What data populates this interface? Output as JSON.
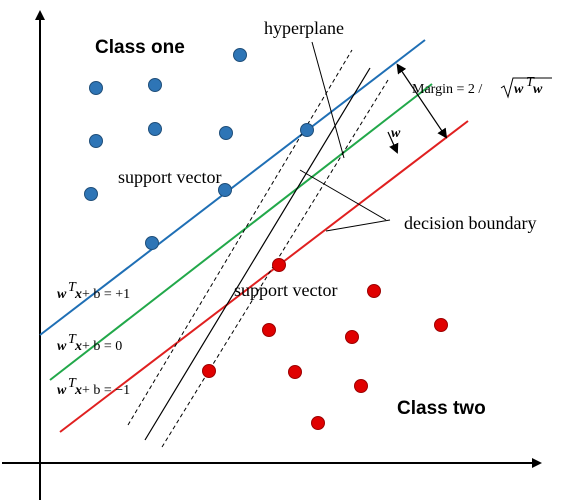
{
  "labels": {
    "class_one": "Class one",
    "class_two": "Class two",
    "hyperplane": "hyperplane",
    "support_vector_top": "support vector",
    "support_vector_bottom": "support vector",
    "decision_boundary": "decision boundary",
    "w": "w",
    "margin_prefix": "Margin = 2 / ",
    "margin_w": "w",
    "margin_T": "T",
    "margin_w2": "w"
  },
  "equations": {
    "plus": {
      "w": "w",
      "T": "T",
      "x": "x",
      "rest": " + b = +1"
    },
    "zero": {
      "w": "w",
      "T": "T",
      "x": "x",
      "rest": " + b = 0"
    },
    "minus": {
      "w": "w",
      "T": "T",
      "x": "x",
      "rest": " + b = −1"
    }
  },
  "colors": {
    "class_one_point": "#2e75b6",
    "class_one_edge": "#1f4e79",
    "class_two_point": "#e00000",
    "class_two_edge": "#9c0000",
    "line_plus": "#1f6fb5",
    "line_zero": "#22a84a",
    "line_minus": "#e02020",
    "axis": "#000000"
  }
}
